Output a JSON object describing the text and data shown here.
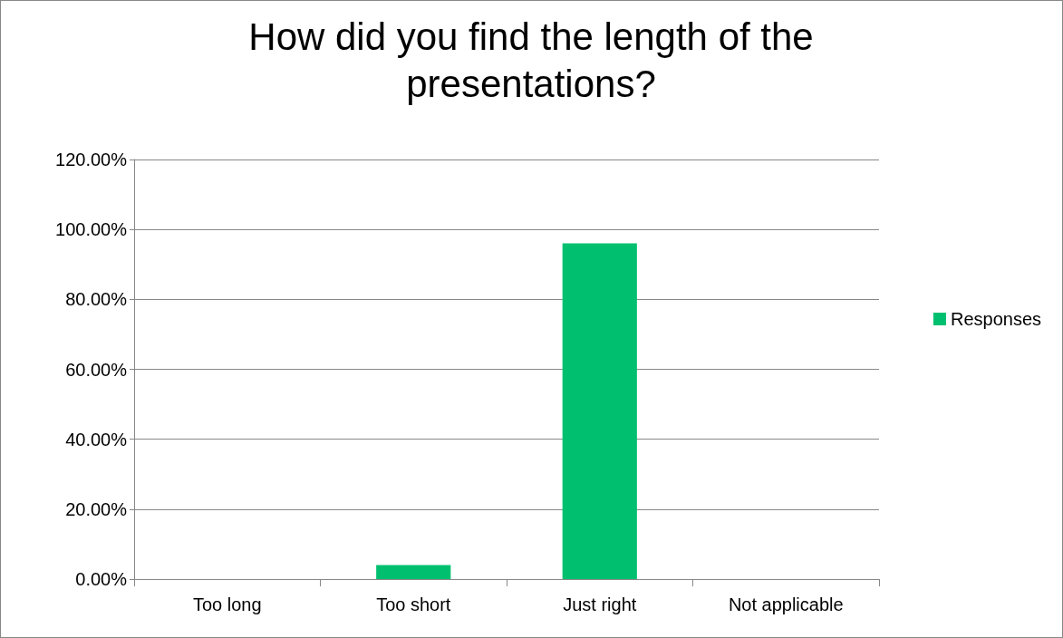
{
  "chart_data": {
    "type": "bar",
    "title": "How did you find the length of the\npresentations?",
    "categories": [
      "Too long",
      "Too short",
      "Just right",
      "Not applicable"
    ],
    "series": [
      {
        "name": "Responses",
        "color": "#00c070",
        "values": [
          0,
          4,
          96,
          0
        ]
      }
    ],
    "ylim": [
      0,
      120
    ],
    "yticks": [
      {
        "value": 0,
        "label": "0.00%"
      },
      {
        "value": 20,
        "label": "20.00%"
      },
      {
        "value": 40,
        "label": "40.00%"
      },
      {
        "value": 60,
        "label": "60.00%"
      },
      {
        "value": 80,
        "label": "80.00%"
      },
      {
        "value": 100,
        "label": "100.00%"
      },
      {
        "value": 120,
        "label": "120.00%"
      }
    ],
    "grid": "y",
    "legend": "right"
  }
}
